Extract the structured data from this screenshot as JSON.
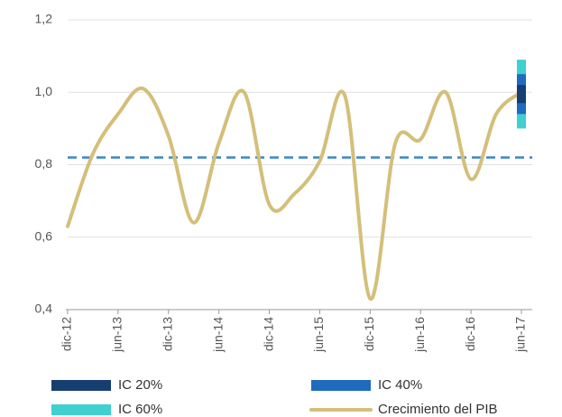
{
  "chart_data": {
    "type": "line",
    "categories": [
      "dic-12",
      null,
      "jun-13",
      null,
      "dic-13",
      null,
      "jun-14",
      null,
      "dic-14",
      null,
      "jun-15",
      null,
      "dic-15",
      null,
      "jun-16",
      null,
      "dic-16",
      null,
      "jun-17"
    ],
    "series": [
      {
        "name": "Crecimiento del PIB",
        "color": "#d4bf7a",
        "values": [
          0.63,
          0.83,
          0.94,
          1.01,
          0.88,
          0.64,
          0.86,
          1.0,
          0.69,
          0.72,
          0.81,
          0.99,
          0.43,
          0.86,
          0.87,
          1.0,
          0.76,
          0.94,
          1.0
        ]
      }
    ],
    "intervals": [
      {
        "name": "IC 20%",
        "color": "#173e70",
        "low": 0.97,
        "high": 1.02
      },
      {
        "name": "IC 40%",
        "color": "#1f6bbf",
        "low": 0.94,
        "high": 1.05
      },
      {
        "name": "IC 60%",
        "color": "#3fd0d0",
        "low": 0.9,
        "high": 1.09
      }
    ],
    "reference_line": {
      "value": 0.82,
      "color": "#3a86c8"
    },
    "ylim": [
      0.4,
      1.2
    ],
    "yticks": [
      {
        "value": 0.4,
        "label": "0,4"
      },
      {
        "value": 0.6,
        "label": "0,6"
      },
      {
        "value": 0.8,
        "label": "0,8"
      },
      {
        "value": 1.0,
        "label": "1,0"
      },
      {
        "value": 1.2,
        "label": "1,2"
      }
    ],
    "grid": true
  }
}
